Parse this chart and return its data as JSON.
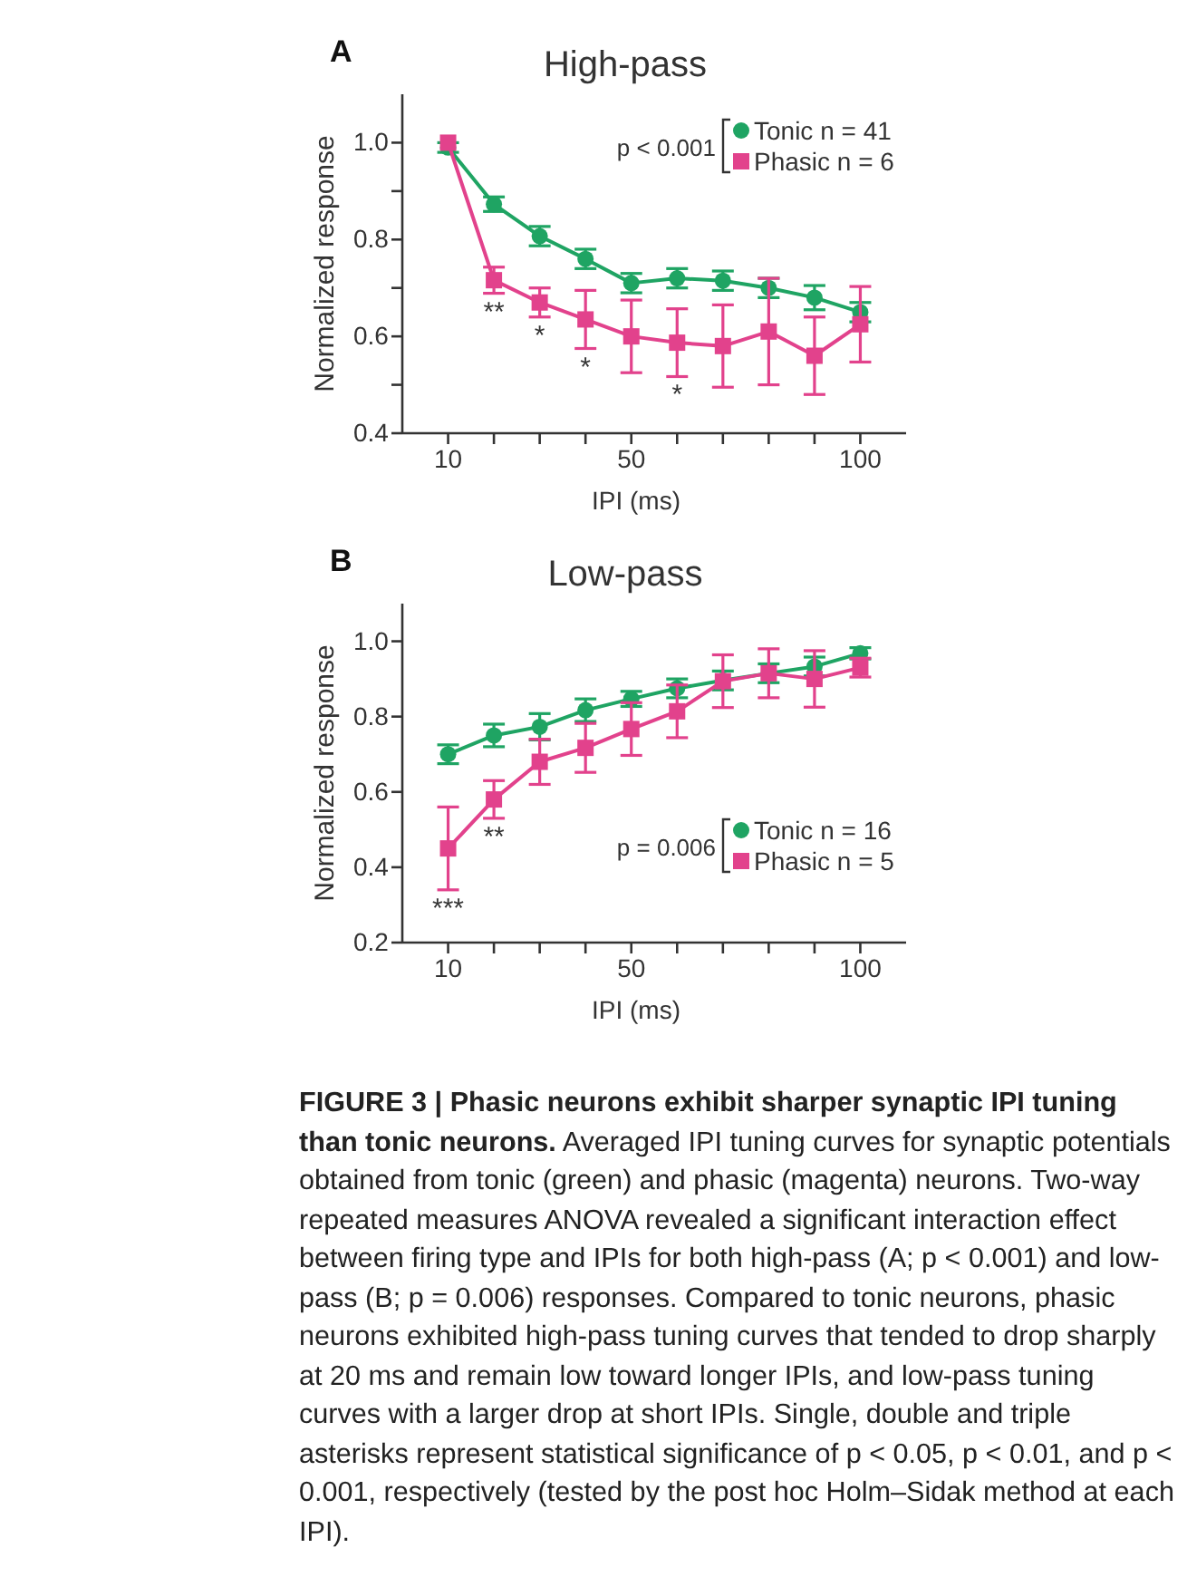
{
  "chart_data": [
    {
      "type": "line",
      "title": "High-pass",
      "xlabel": "IPI (ms)",
      "ylabel": "Normalized response",
      "legend": "top right",
      "legend_title": "p < 0.001",
      "x": [
        10,
        20,
        30,
        40,
        50,
        60,
        70,
        80,
        90,
        100
      ],
      "xlim": [
        0,
        110
      ],
      "xticks": [
        10,
        {
          "value": 20,
          "label": null
        },
        {
          "value": 30,
          "label": null
        },
        {
          "value": 40,
          "label": null
        },
        50,
        {
          "value": 60,
          "label": null
        },
        {
          "value": 70,
          "label": null
        },
        {
          "value": 80,
          "label": null
        },
        {
          "value": 90,
          "label": null
        },
        100
      ],
      "ylim": [
        0.4,
        1.1
      ],
      "yticks": [
        0.4,
        {
          "value": 0.5,
          "label": null
        },
        0.6,
        {
          "value": 0.7,
          "label": null
        },
        0.8,
        {
          "value": 0.9,
          "label": null
        },
        {
          "value": 1.0,
          "label": "1.0"
        }
      ],
      "series": [
        {
          "name": "Tonic n = 41",
          "color": "#1fa463",
          "marker": "circle",
          "values": [
            0.99,
            0.873,
            0.807,
            0.76,
            0.71,
            0.72,
            0.715,
            0.7,
            0.68,
            0.65
          ],
          "errors": [
            0.01,
            0.015,
            0.02,
            0.02,
            0.02,
            0.02,
            0.02,
            0.02,
            0.025,
            0.02
          ]
        },
        {
          "name": "Phasic n = 6",
          "color": "#e2428c",
          "marker": "square",
          "values": [
            1.0,
            0.716,
            0.67,
            0.635,
            0.6,
            0.587,
            0.58,
            0.61,
            0.56,
            0.625
          ],
          "errors": [
            null,
            0.027,
            0.03,
            0.06,
            0.075,
            0.07,
            0.085,
            0.11,
            0.08,
            0.078
          ]
        }
      ],
      "annotations": [
        "A",
        {
          "text": "**",
          "x": 20,
          "y": 0.689
        },
        {
          "text": "*",
          "x": 30,
          "y": 0.64
        },
        {
          "text": "*",
          "x": 40,
          "y": 0.575
        },
        {
          "text": "*",
          "x": 60,
          "y": 0.517
        }
      ]
    },
    {
      "type": "line",
      "title": "Low-pass",
      "xlabel": "IPI (ms)",
      "ylabel": "Normalized response",
      "legend": "bottom right",
      "legend_title": "p = 0.006",
      "x": [
        10,
        20,
        30,
        40,
        50,
        60,
        70,
        80,
        90,
        100
      ],
      "xlim": [
        0,
        110
      ],
      "xticks": [
        10,
        {
          "value": 20,
          "label": null
        },
        {
          "value": 30,
          "label": null
        },
        {
          "value": 40,
          "label": null
        },
        50,
        {
          "value": 60,
          "label": null
        },
        {
          "value": 70,
          "label": null
        },
        {
          "value": 80,
          "label": null
        },
        {
          "value": 90,
          "label": null
        },
        100
      ],
      "ylim": [
        0.2,
        1.1
      ],
      "yticks": [
        0.2,
        0.4,
        0.6,
        0.8,
        {
          "value": 1.0,
          "label": "1.0"
        }
      ],
      "series": [
        {
          "name": "Tonic n = 16",
          "color": "#1fa463",
          "marker": "circle",
          "values": [
            0.7,
            0.75,
            0.773,
            0.817,
            0.847,
            0.875,
            0.896,
            0.915,
            0.933,
            0.968
          ],
          "errors": [
            0.025,
            0.03,
            0.035,
            0.03,
            0.02,
            0.025,
            0.025,
            0.025,
            0.025,
            0.015
          ]
        },
        {
          "name": "Phasic n = 5",
          "color": "#e2428c",
          "marker": "square",
          "values": [
            0.45,
            0.58,
            0.68,
            0.717,
            0.767,
            0.814,
            0.894,
            0.915,
            0.9,
            0.93
          ],
          "errors": [
            0.11,
            0.05,
            0.06,
            0.065,
            0.07,
            0.07,
            0.07,
            0.065,
            0.075,
            0.025
          ]
        }
      ],
      "annotations": [
        "B",
        {
          "text": "***",
          "x": 10,
          "y": 0.34
        },
        {
          "text": "**",
          "x": 20,
          "y": 0.53
        },
        "FIGURE 3 | Phasic neurons exhibit sharper synaptic IPI tuning than tonic neurons.",
        "Averaged IPI tuning curves for synaptic potentials obtained from tonic (green) and phasic (magenta) neurons. Two-way repeated measures ANOVA revealed a significant interaction effect between firing type and IPIs for both high-pass (A; p < 0.001) and low-pass (B; p = 0.006) responses. Compared to tonic neurons, phasic neurons exhibited high-pass tuning curves that tended to drop sharply at 20 ms and remain low toward longer IPIs, and low-pass tuning curves with a larger drop at short IPIs. Single, double and triple asterisks represent statistical significance of p < 0.05, p < 0.01, and p < 0.001, respectively (tested by the post hoc Holm–Sidak method at each IPI)."
      ]
    }
  ]
}
